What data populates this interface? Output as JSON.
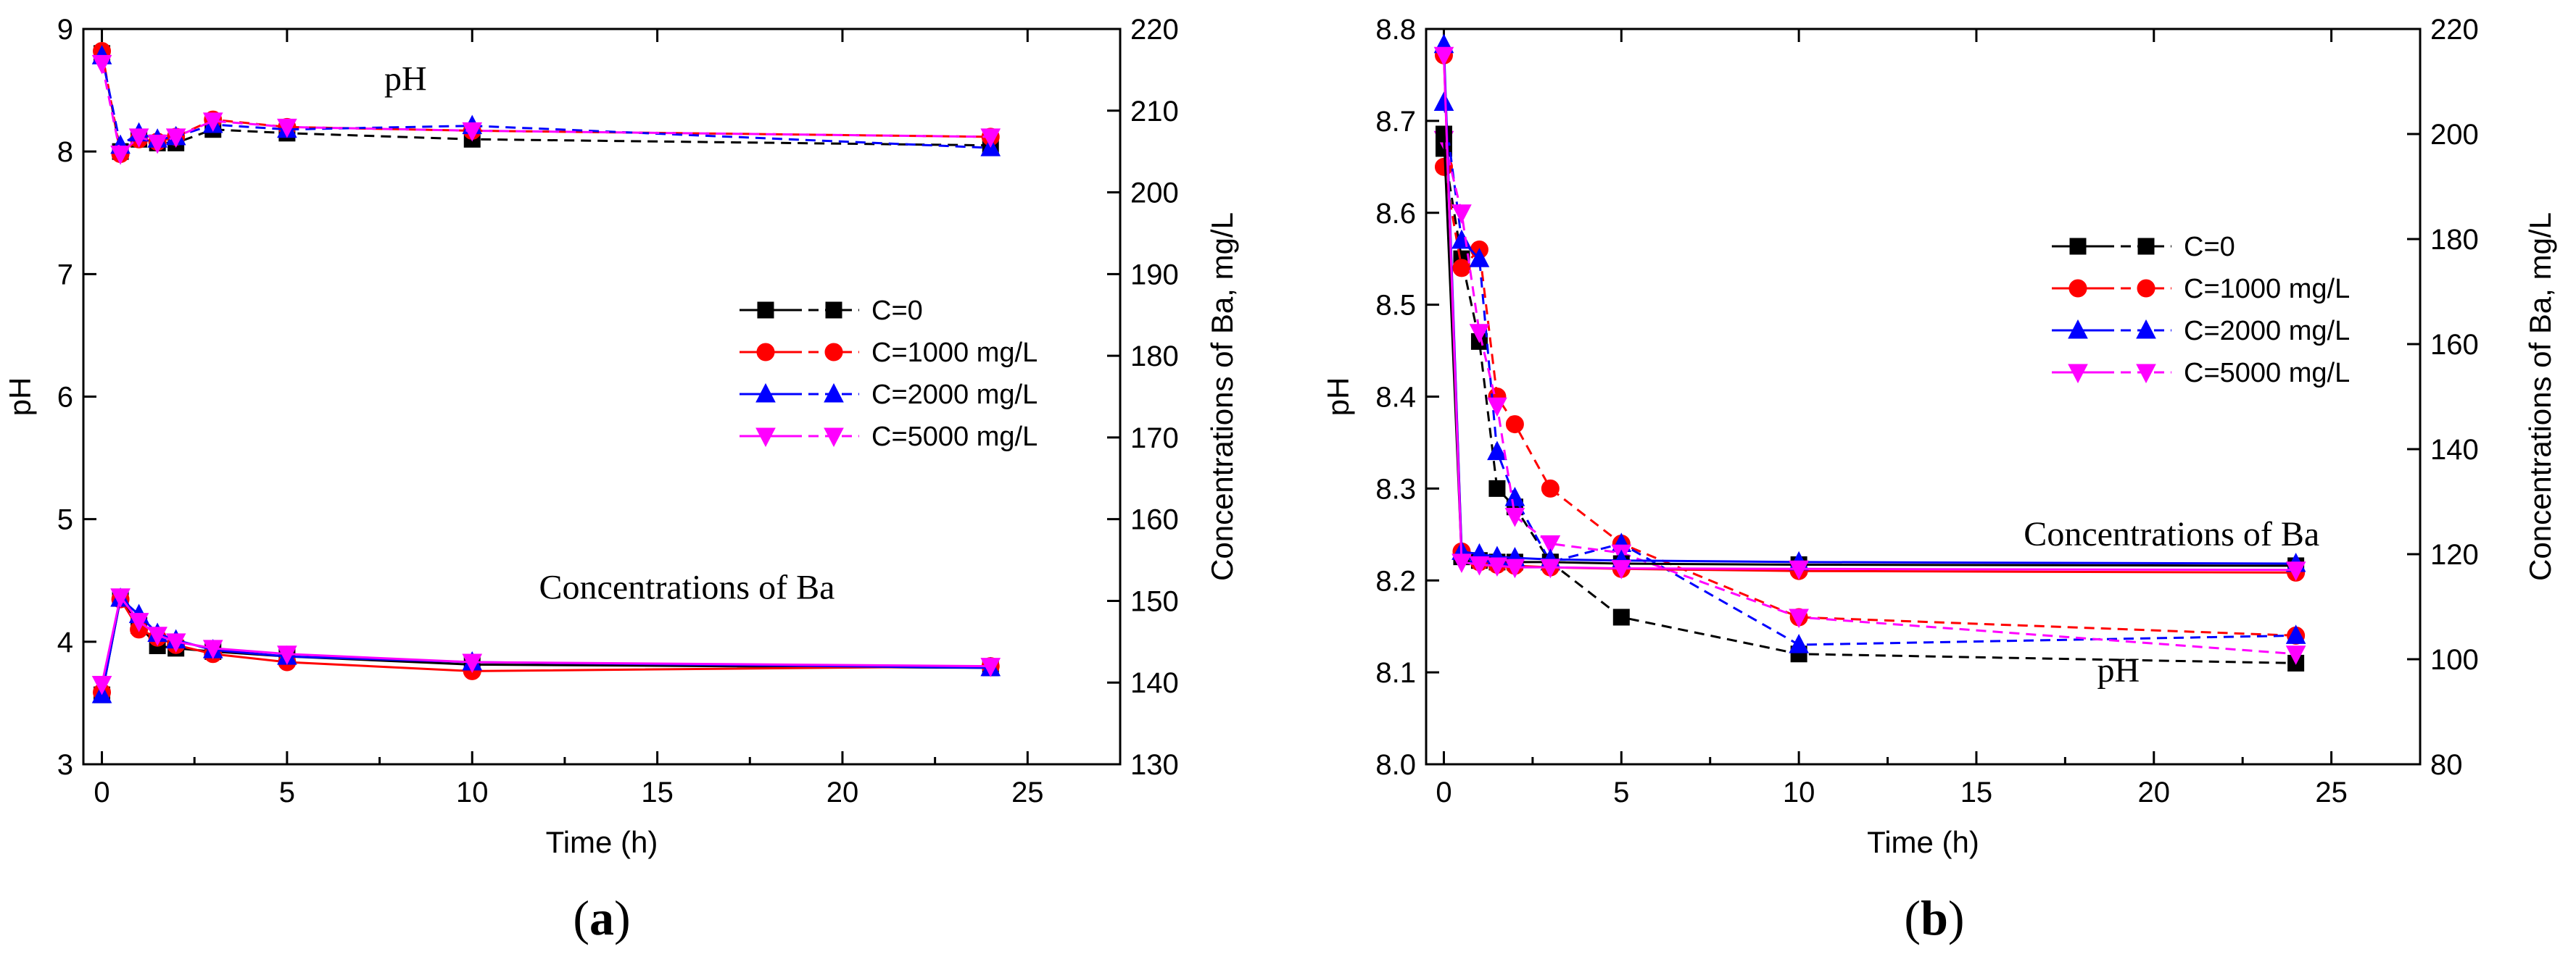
{
  "colors": {
    "C=0": "#000000",
    "C=1000 mg/L": "#ff0000",
    "C=2000 mg/L": "#0000ff",
    "C=5000 mg/L": "#ff00ff"
  },
  "chart_data": [
    {
      "panel": "a",
      "panel_label": {
        "open": "(",
        "letter": "a",
        "close": ")"
      },
      "type": "line",
      "xlabel": "Time (h)",
      "ylabel": "pH",
      "y2label": "Concentrations of  Ba, mg/L",
      "xlim": [
        -0.5,
        27.5
      ],
      "ylim": [
        3,
        9
      ],
      "y2lim": [
        130,
        220
      ],
      "xticks": [
        0,
        5,
        10,
        15,
        20,
        25
      ],
      "yticks": [
        3,
        4,
        5,
        6,
        7,
        8,
        9
      ],
      "y2ticks": [
        130,
        140,
        150,
        160,
        170,
        180,
        190,
        200,
        210,
        220
      ],
      "annotations": [
        {
          "text": "pH",
          "x": 8.2,
          "y": 8.5
        },
        {
          "text": "Concentrations of Ba",
          "x": 15.8,
          "y": 4.35
        }
      ],
      "legend": {
        "position": "center-right",
        "entries": [
          "C=0",
          "C=1000 mg/L",
          "C=2000 mg/L",
          "C=5000 mg/L"
        ]
      },
      "series": [
        {
          "name": "C=0",
          "variable": "pH",
          "axis": "left",
          "style": "dashed",
          "marker": "square",
          "x": [
            0,
            0.5,
            1,
            1.5,
            2,
            3,
            5,
            10,
            24
          ],
          "y": [
            8.8,
            8.0,
            8.1,
            8.07,
            8.07,
            8.18,
            8.15,
            8.1,
            8.05
          ]
        },
        {
          "name": "C=1000 mg/L",
          "variable": "pH",
          "axis": "left",
          "style": "dashed",
          "marker": "circle",
          "x": [
            0,
            0.5,
            1,
            1.5,
            2,
            3,
            5,
            10,
            24
          ],
          "y": [
            8.82,
            7.98,
            8.1,
            8.08,
            8.12,
            8.26,
            8.2,
            8.17,
            8.12
          ]
        },
        {
          "name": "C=2000 mg/L",
          "variable": "pH",
          "axis": "left",
          "style": "dashed",
          "marker": "triangle-up",
          "x": [
            0,
            0.5,
            1,
            1.5,
            2,
            3,
            5,
            10,
            24
          ],
          "y": [
            8.78,
            8.05,
            8.15,
            8.1,
            8.12,
            8.22,
            8.18,
            8.21,
            8.03
          ]
        },
        {
          "name": "C=5000 mg/L",
          "variable": "pH",
          "axis": "left",
          "style": "dashed",
          "marker": "triangle-down",
          "x": [
            0,
            0.5,
            1,
            1.5,
            2,
            3,
            5,
            10,
            24
          ],
          "y": [
            8.72,
            7.98,
            8.12,
            8.07,
            8.12,
            8.25,
            8.2,
            8.17,
            8.12
          ]
        },
        {
          "name": "C=0",
          "variable": "Ba",
          "axis": "right",
          "style": "solid",
          "marker": "square",
          "x": [
            0,
            0.5,
            1,
            1.5,
            2,
            3,
            5,
            10,
            24
          ],
          "y": [
            138.5,
            150.3,
            147,
            144.5,
            144.2,
            143.8,
            143.2,
            142.2,
            141.8
          ]
        },
        {
          "name": "C=1000 mg/L",
          "variable": "Ba",
          "axis": "right",
          "style": "solid",
          "marker": "circle",
          "x": [
            0,
            0.5,
            1,
            1.5,
            2,
            3,
            5,
            10,
            24
          ],
          "y": [
            138.8,
            150.2,
            146.5,
            145.5,
            144.6,
            143.5,
            142.5,
            141.4,
            142
          ]
        },
        {
          "name": "C=2000 mg/L",
          "variable": "Ba",
          "axis": "right",
          "style": "solid",
          "marker": "triangle-up",
          "x": [
            0,
            0.5,
            1,
            1.5,
            2,
            3,
            5,
            10,
            24
          ],
          "y": [
            138.5,
            150.3,
            148.3,
            146,
            145.2,
            144,
            143.2,
            142.5,
            141.8
          ]
        },
        {
          "name": "C=5000 mg/L",
          "variable": "Ba",
          "axis": "right",
          "style": "solid",
          "marker": "triangle-down",
          "x": [
            0,
            0.5,
            1,
            1.5,
            2,
            3,
            5,
            10,
            24
          ],
          "y": [
            139.8,
            150.5,
            147.5,
            145.8,
            145,
            144.2,
            143.5,
            142.5,
            142
          ]
        }
      ]
    },
    {
      "panel": "b",
      "panel_label": {
        "open": "(",
        "letter": "b",
        "close": ")"
      },
      "type": "line",
      "xlabel": "Time (h)",
      "ylabel": "pH",
      "y2label": "Concentrations of  Ba, mg/L",
      "xlim": [
        -0.5,
        27.5
      ],
      "ylim": [
        8.0,
        8.8
      ],
      "y2lim": [
        80,
        220
      ],
      "xticks": [
        0,
        5,
        10,
        15,
        20,
        25
      ],
      "yticks": [
        8.0,
        8.1,
        8.2,
        8.3,
        8.4,
        8.5,
        8.6,
        8.7,
        8.8
      ],
      "y2ticks": [
        80,
        100,
        120,
        140,
        160,
        180,
        200,
        220
      ],
      "annotations": [
        {
          "text": "Concentrations of Ba",
          "x": 20.5,
          "y": 8.238
        },
        {
          "text": "pH",
          "x": 19,
          "y": 8.09
        }
      ],
      "legend": {
        "position": "upper-right",
        "entries": [
          "C=0",
          "C=1000 mg/L",
          "C=2000 mg/L",
          "C=5000 mg/L"
        ]
      },
      "series": [
        {
          "name": "C=0",
          "variable": "pH",
          "axis": "left",
          "style": "dashed",
          "marker": "square",
          "x": [
            0,
            0.5,
            1,
            1.5,
            2,
            3,
            5,
            10,
            24
          ],
          "y": [
            8.67,
            8.55,
            8.46,
            8.3,
            8.28,
            8.22,
            8.16,
            8.12,
            8.11
          ]
        },
        {
          "name": "C=1000 mg/L",
          "variable": "pH",
          "axis": "left",
          "style": "dashed",
          "marker": "circle",
          "x": [
            0,
            0.5,
            1,
            1.5,
            2,
            3,
            5,
            10,
            24
          ],
          "y": [
            8.65,
            8.54,
            8.56,
            8.4,
            8.37,
            8.3,
            8.24,
            8.16,
            8.14
          ]
        },
        {
          "name": "C=2000 mg/L",
          "variable": "pH",
          "axis": "left",
          "style": "dashed",
          "marker": "triangle-up",
          "x": [
            0,
            0.5,
            1,
            1.5,
            2,
            3,
            5,
            10,
            24
          ],
          "y": [
            8.72,
            8.57,
            8.55,
            8.34,
            8.29,
            8.22,
            8.24,
            8.13,
            8.14
          ]
        },
        {
          "name": "C=5000 mg/L",
          "variable": "pH",
          "axis": "left",
          "style": "dashed",
          "marker": "triangle-down",
          "x": [
            0,
            0.5,
            1,
            1.5,
            2,
            3,
            5,
            10,
            24
          ],
          "y": [
            8.68,
            8.6,
            8.47,
            8.39,
            8.27,
            8.24,
            8.23,
            8.16,
            8.12
          ]
        },
        {
          "name": "C=0",
          "variable": "Ba",
          "axis": "right",
          "style": "solid",
          "marker": "square",
          "x": [
            0,
            0.5,
            1,
            1.5,
            2,
            3,
            5,
            10,
            24
          ],
          "y": [
            200,
            119.5,
            118.8,
            118.5,
            118.5,
            118.5,
            118.2,
            118,
            117.8
          ]
        },
        {
          "name": "C=1000 mg/L",
          "variable": "Ba",
          "axis": "right",
          "style": "solid",
          "marker": "circle",
          "x": [
            0,
            0.5,
            1,
            1.5,
            2,
            3,
            5,
            10,
            24
          ],
          "y": [
            215,
            120.5,
            118.5,
            118,
            117.8,
            117.5,
            117.2,
            116.8,
            116.5
          ]
        },
        {
          "name": "C=2000 mg/L",
          "variable": "Ba",
          "axis": "right",
          "style": "solid",
          "marker": "triangle-up",
          "x": [
            0,
            0.5,
            1,
            1.5,
            2,
            3,
            5,
            10,
            24
          ],
          "y": [
            217,
            120.5,
            120,
            119.5,
            119.3,
            119,
            118.8,
            118.5,
            118.2
          ]
        },
        {
          "name": "C=5000 mg/L",
          "variable": "Ba",
          "axis": "right",
          "style": "solid",
          "marker": "triangle-down",
          "x": [
            0,
            0.5,
            1,
            1.5,
            2,
            3,
            5,
            10,
            24
          ],
          "y": [
            215,
            118.5,
            118,
            117.8,
            117.5,
            117.5,
            117.3,
            117.2,
            117
          ]
        }
      ]
    }
  ]
}
